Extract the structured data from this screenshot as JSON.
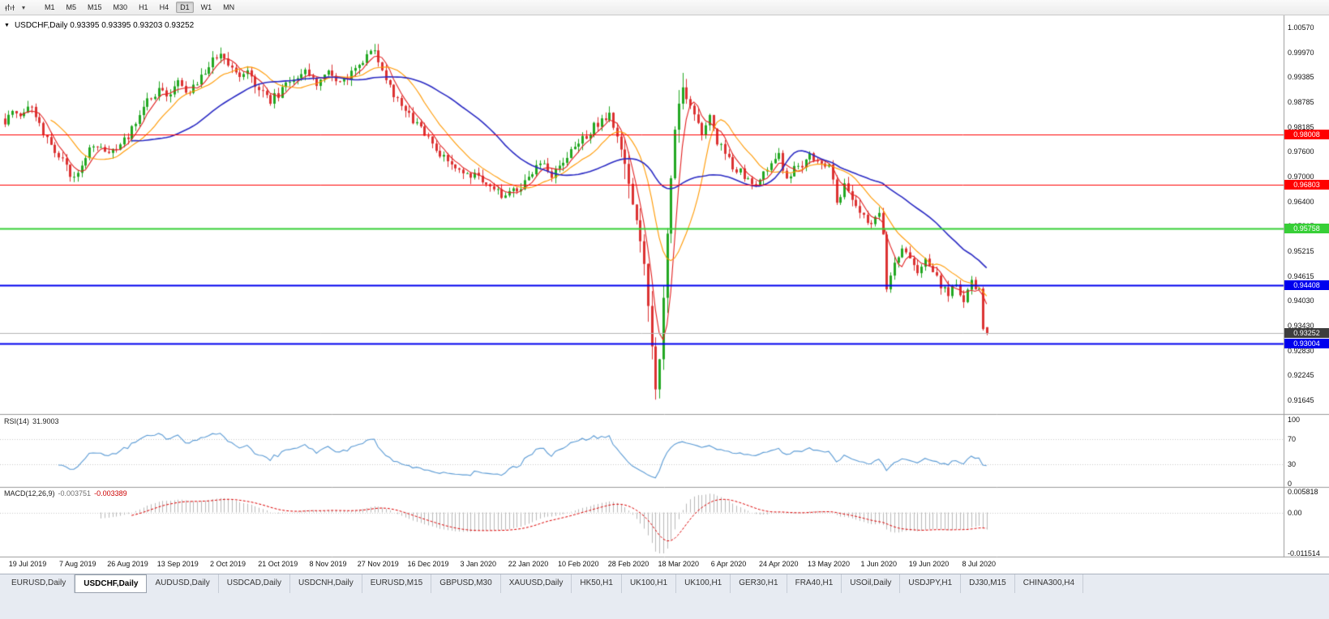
{
  "toolbar": {
    "timeframes": [
      "M1",
      "M5",
      "M15",
      "M30",
      "H1",
      "H4",
      "D1",
      "W1",
      "MN"
    ],
    "active_timeframe": "D1",
    "caret_glyph": "▾"
  },
  "chart": {
    "menu_arrow": "▼",
    "header_text": "USDCHF,Daily 0.93395 0.93395 0.93203 0.93252"
  },
  "chart_data": {
    "type": "candlestick",
    "symbol": "USDCHF",
    "timeframe": "Daily",
    "last_candle": {
      "open": 0.93395,
      "high": 0.93395,
      "low": 0.93203,
      "close": 0.93252
    },
    "candle_count": 256,
    "colors": {
      "up": "#22a822",
      "down": "#dc3232",
      "bid_line": "#b4b4b4"
    },
    "price_axis": {
      "max": 1.0057,
      "min": 0.91645,
      "labels": [
        "1.00570",
        "0.99970",
        "0.99385",
        "0.98785",
        "0.98185",
        "0.97600",
        "0.97000",
        "0.96400",
        "0.95815",
        "0.95215",
        "0.94615",
        "0.94030",
        "0.93430",
        "0.92830",
        "0.92245",
        "0.91645"
      ]
    },
    "x_axis": {
      "labels": [
        "19 Jul 2019",
        "7 Aug 2019",
        "26 Aug 2019",
        "13 Sep 2019",
        "2 Oct 2019",
        "21 Oct 2019",
        "8 Nov 2019",
        "27 Nov 2019",
        "16 Dec 2019",
        "3 Jan 2020",
        "22 Jan 2020",
        "10 Feb 2020",
        "28 Feb 2020",
        "18 Mar 2020",
        "6 Apr 2020",
        "24 Apr 2020",
        "13 May 2020",
        "1 Jun 2020",
        "19 Jun 2020",
        "8 Jul 2020"
      ],
      "first_candle_index": 6,
      "step": 13
    },
    "price_anchors": [
      [
        0,
        0.9825
      ],
      [
        2,
        0.9868
      ],
      [
        4,
        0.9845
      ],
      [
        7,
        0.9872
      ],
      [
        10,
        0.98
      ],
      [
        13,
        0.9762
      ],
      [
        16,
        0.9722
      ],
      [
        18,
        0.9695
      ],
      [
        21,
        0.9755
      ],
      [
        25,
        0.9775
      ],
      [
        28,
        0.9758
      ],
      [
        32,
        0.98
      ],
      [
        36,
        0.9868
      ],
      [
        40,
        0.9908
      ],
      [
        43,
        0.989
      ],
      [
        45,
        0.9935
      ],
      [
        48,
        0.9898
      ],
      [
        51,
        0.994
      ],
      [
        54,
        0.9985
      ],
      [
        56,
        0.9998
      ],
      [
        58,
        0.9975
      ],
      [
        61,
        0.993
      ],
      [
        63,
        0.9958
      ],
      [
        66,
        0.9905
      ],
      [
        69,
        0.988
      ],
      [
        72,
        0.9908
      ],
      [
        75,
        0.9928
      ],
      [
        78,
        0.9948
      ],
      [
        81,
        0.9925
      ],
      [
        84,
        0.9952
      ],
      [
        87,
        0.992
      ],
      [
        90,
        0.9952
      ],
      [
        93,
        0.998
      ],
      [
        96,
        1.0002
      ],
      [
        98,
        0.995
      ],
      [
        100,
        0.9912
      ],
      [
        103,
        0.987
      ],
      [
        106,
        0.9835
      ],
      [
        110,
        0.9788
      ],
      [
        113,
        0.9752
      ],
      [
        116,
        0.972
      ],
      [
        119,
        0.9705
      ],
      [
        123,
        0.9698
      ],
      [
        126,
        0.9672
      ],
      [
        129,
        0.9655
      ],
      [
        132,
        0.9668
      ],
      [
        136,
        0.9692
      ],
      [
        139,
        0.973
      ],
      [
        142,
        0.9705
      ],
      [
        145,
        0.9742
      ],
      [
        148,
        0.9762
      ],
      [
        151,
        0.98
      ],
      [
        154,
        0.983
      ],
      [
        157,
        0.9842
      ],
      [
        159,
        0.98
      ],
      [
        161,
        0.974
      ],
      [
        163,
        0.964
      ],
      [
        165,
        0.955
      ],
      [
        166,
        0.948
      ],
      [
        167,
        0.9395
      ],
      [
        168,
        0.93
      ],
      [
        169,
        0.9198
      ],
      [
        170,
        0.9262
      ],
      [
        171,
        0.9415
      ],
      [
        172,
        0.956
      ],
      [
        173,
        0.97
      ],
      [
        174,
        0.9815
      ],
      [
        175,
        0.9885
      ],
      [
        176,
        0.9922
      ],
      [
        177,
        0.988
      ],
      [
        179,
        0.9848
      ],
      [
        181,
        0.9805
      ],
      [
        183,
        0.9845
      ],
      [
        185,
        0.9788
      ],
      [
        187,
        0.9748
      ],
      [
        189,
        0.9728
      ],
      [
        192,
        0.97
      ],
      [
        195,
        0.9688
      ],
      [
        198,
        0.9722
      ],
      [
        201,
        0.9748
      ],
      [
        203,
        0.9702
      ],
      [
        206,
        0.9725
      ],
      [
        209,
        0.9748
      ],
      [
        212,
        0.973
      ],
      [
        214,
        0.9722
      ],
      [
        216,
        0.9648
      ],
      [
        218,
        0.9675
      ],
      [
        220,
        0.9645
      ],
      [
        222,
        0.9618
      ],
      [
        225,
        0.959
      ],
      [
        227,
        0.9612
      ],
      [
        228,
        0.956
      ],
      [
        229,
        0.9435
      ],
      [
        231,
        0.9495
      ],
      [
        233,
        0.953
      ],
      [
        235,
        0.9505
      ],
      [
        237,
        0.9478
      ],
      [
        239,
        0.9505
      ],
      [
        241,
        0.947
      ],
      [
        243,
        0.944
      ],
      [
        245,
        0.9418
      ],
      [
        247,
        0.9445
      ],
      [
        249,
        0.9408
      ],
      [
        251,
        0.9455
      ],
      [
        253,
        0.9425
      ],
      [
        254,
        0.934
      ],
      [
        255,
        0.93252
      ]
    ],
    "h_lines": [
      {
        "price": 0.98008,
        "label": "0.98008",
        "color": "#ff0000",
        "width": 1
      },
      {
        "price": 0.96803,
        "label": "0.96803",
        "color": "#ff0000",
        "width": 1
      },
      {
        "price": 0.95758,
        "label": "0.95758",
        "color": "#37cf37",
        "width": 2
      },
      {
        "price": 0.94408,
        "label": "0.94408",
        "color": "#0000ee",
        "width": 2
      },
      {
        "price": 0.93004,
        "label": "0.93004",
        "color": "#0000ee",
        "width": 2
      }
    ],
    "bid": {
      "label": "0.93252",
      "value": 0.93252,
      "badge_color": "#3d3d3d"
    },
    "moving_averages": [
      {
        "period": 5,
        "color": "#e22222"
      },
      {
        "period": 13,
        "color": "#ff9900"
      },
      {
        "period": 34,
        "color": "#2b2bc4"
      }
    ],
    "rsi": {
      "label": "RSI(14)",
      "value": "31.9003",
      "period": 14,
      "color": "#5b9bd5",
      "axis_labels": [
        "100",
        "70",
        "30",
        "0"
      ],
      "dotted_levels": [
        70,
        30
      ]
    },
    "macd": {
      "label": "MACD(12,26,9)",
      "main_value": "-0.003751",
      "signal_value": "-0.003389",
      "fast": 12,
      "slow": 26,
      "signal": 9,
      "bar_color": "#b9b9b9",
      "signal_color": "#dd0000",
      "axis_labels": [
        "0.005818",
        "0.00",
        "-0.011514"
      ],
      "max": 0.005818,
      "min": -0.011514
    }
  },
  "tab_bar": {
    "tabs": [
      "EURUSD,Daily",
      "USDCHF,Daily",
      "AUDUSD,Daily",
      "USDCAD,Daily",
      "USDCNH,Daily",
      "EURUSD,M15",
      "GBPUSD,M30",
      "XAUUSD,Daily",
      "HK50,H1",
      "UK100,H1",
      "UK100,H1",
      "GER30,H1",
      "FRA40,H1",
      "USOil,Daily",
      "USDJPY,H1",
      "DJ30,M15",
      "CHINA300,H4"
    ],
    "active_index": 1
  }
}
